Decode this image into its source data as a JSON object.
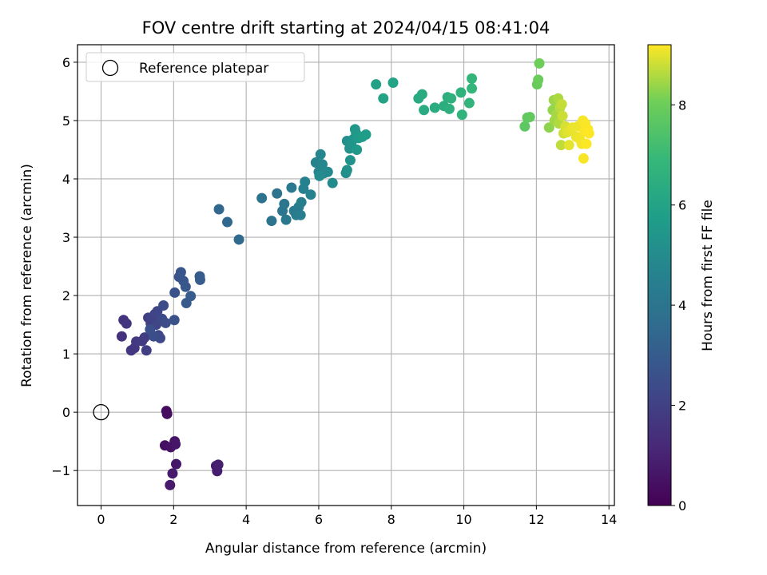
{
  "chart_data": {
    "type": "scatter",
    "title": "FOV centre drift starting at 2024/04/15 08:41:04",
    "xlabel": "Angular distance from reference (arcmin)",
    "ylabel": "Rotation from reference (arcmin)",
    "xlim": [
      -0.65,
      14.15
    ],
    "ylim": [
      -1.6,
      6.3
    ],
    "xticks": [
      0,
      2,
      4,
      6,
      8,
      10,
      12,
      14
    ],
    "yticks": [
      -1,
      0,
      1,
      2,
      3,
      4,
      5,
      6
    ],
    "grid": true,
    "colormap": "viridis",
    "colorbar": {
      "label": "Hours from first FF file",
      "range": [
        0,
        9.2
      ],
      "ticks": [
        0,
        2,
        4,
        6,
        8
      ]
    },
    "legend": {
      "placement": "top-left",
      "entries": [
        "Reference platepar"
      ]
    },
    "reference_point": {
      "x": 0,
      "y": 0
    },
    "points": [
      {
        "x": 1.8,
        "y": 0.02,
        "h": 0.3
      },
      {
        "x": 1.82,
        "y": -0.03,
        "h": 0.35
      },
      {
        "x": 1.76,
        "y": -0.57,
        "h": 0.45
      },
      {
        "x": 1.92,
        "y": -0.6,
        "h": 0.5
      },
      {
        "x": 2.03,
        "y": -0.5,
        "h": 0.55
      },
      {
        "x": 2.05,
        "y": -0.55,
        "h": 0.6
      },
      {
        "x": 2.07,
        "y": -0.89,
        "h": 0.65
      },
      {
        "x": 1.97,
        "y": -1.05,
        "h": 0.7
      },
      {
        "x": 1.9,
        "y": -1.25,
        "h": 0.75
      },
      {
        "x": 3.17,
        "y": -0.92,
        "h": 0.8
      },
      {
        "x": 3.2,
        "y": -1.01,
        "h": 0.85
      },
      {
        "x": 3.23,
        "y": -0.9,
        "h": 0.9
      },
      {
        "x": 0.57,
        "y": 1.3,
        "h": 1.5
      },
      {
        "x": 0.62,
        "y": 1.58,
        "h": 1.55
      },
      {
        "x": 0.7,
        "y": 1.52,
        "h": 1.6
      },
      {
        "x": 0.83,
        "y": 1.06,
        "h": 1.65
      },
      {
        "x": 0.92,
        "y": 1.1,
        "h": 1.7
      },
      {
        "x": 0.97,
        "y": 1.21,
        "h": 1.75
      },
      {
        "x": 1.13,
        "y": 1.22,
        "h": 1.8
      },
      {
        "x": 1.2,
        "y": 1.28,
        "h": 1.85
      },
      {
        "x": 1.25,
        "y": 1.06,
        "h": 1.9
      },
      {
        "x": 1.3,
        "y": 1.62,
        "h": 1.95
      },
      {
        "x": 1.37,
        "y": 1.52,
        "h": 2.0
      },
      {
        "x": 1.42,
        "y": 1.62,
        "h": 2.05
      },
      {
        "x": 1.48,
        "y": 1.68,
        "h": 2.1
      },
      {
        "x": 1.52,
        "y": 1.5,
        "h": 2.15
      },
      {
        "x": 1.55,
        "y": 1.73,
        "h": 2.2
      },
      {
        "x": 1.58,
        "y": 1.32,
        "h": 2.25
      },
      {
        "x": 1.63,
        "y": 1.27,
        "h": 2.3
      },
      {
        "x": 1.68,
        "y": 1.6,
        "h": 2.35
      },
      {
        "x": 1.72,
        "y": 1.83,
        "h": 2.4
      },
      {
        "x": 1.78,
        "y": 1.53,
        "h": 2.45
      },
      {
        "x": 1.45,
        "y": 1.3,
        "h": 2.5
      },
      {
        "x": 1.35,
        "y": 1.42,
        "h": 2.55
      },
      {
        "x": 2.02,
        "y": 1.58,
        "h": 2.6
      },
      {
        "x": 2.03,
        "y": 2.05,
        "h": 2.65
      },
      {
        "x": 2.15,
        "y": 2.32,
        "h": 2.7
      },
      {
        "x": 2.2,
        "y": 2.4,
        "h": 2.75
      },
      {
        "x": 2.27,
        "y": 2.25,
        "h": 2.8
      },
      {
        "x": 2.33,
        "y": 2.15,
        "h": 2.85
      },
      {
        "x": 2.35,
        "y": 1.87,
        "h": 2.9
      },
      {
        "x": 2.47,
        "y": 1.99,
        "h": 2.95
      },
      {
        "x": 2.72,
        "y": 2.33,
        "h": 3.0
      },
      {
        "x": 2.73,
        "y": 2.27,
        "h": 3.05
      },
      {
        "x": 3.25,
        "y": 3.48,
        "h": 3.4
      },
      {
        "x": 3.48,
        "y": 3.26,
        "h": 3.5
      },
      {
        "x": 3.8,
        "y": 2.96,
        "h": 3.6
      },
      {
        "x": 4.43,
        "y": 3.67,
        "h": 3.9
      },
      {
        "x": 4.7,
        "y": 3.28,
        "h": 3.95
      },
      {
        "x": 4.85,
        "y": 3.75,
        "h": 4.0
      },
      {
        "x": 5.0,
        "y": 3.45,
        "h": 4.05
      },
      {
        "x": 5.05,
        "y": 3.57,
        "h": 4.1
      },
      {
        "x": 5.1,
        "y": 3.3,
        "h": 4.15
      },
      {
        "x": 5.25,
        "y": 3.85,
        "h": 4.2
      },
      {
        "x": 5.32,
        "y": 3.45,
        "h": 4.25
      },
      {
        "x": 5.38,
        "y": 3.38,
        "h": 4.3
      },
      {
        "x": 5.45,
        "y": 3.52,
        "h": 4.35
      },
      {
        "x": 5.5,
        "y": 3.38,
        "h": 4.4
      },
      {
        "x": 5.52,
        "y": 3.6,
        "h": 4.45
      },
      {
        "x": 5.58,
        "y": 3.83,
        "h": 4.5
      },
      {
        "x": 5.62,
        "y": 3.95,
        "h": 4.55
      },
      {
        "x": 5.78,
        "y": 3.73,
        "h": 4.6
      },
      {
        "x": 5.92,
        "y": 4.28,
        "h": 4.65
      },
      {
        "x": 6.0,
        "y": 4.12,
        "h": 4.7
      },
      {
        "x": 6.05,
        "y": 4.42,
        "h": 4.75
      },
      {
        "x": 6.1,
        "y": 4.25,
        "h": 4.8
      },
      {
        "x": 6.15,
        "y": 4.1,
        "h": 4.85
      },
      {
        "x": 6.25,
        "y": 4.12,
        "h": 4.9
      },
      {
        "x": 6.38,
        "y": 3.93,
        "h": 4.95
      },
      {
        "x": 6.02,
        "y": 4.05,
        "h": 5.0
      },
      {
        "x": 6.75,
        "y": 4.1,
        "h": 5.1
      },
      {
        "x": 6.78,
        "y": 4.65,
        "h": 5.15
      },
      {
        "x": 6.78,
        "y": 4.15,
        "h": 5.2
      },
      {
        "x": 6.85,
        "y": 4.52,
        "h": 5.25
      },
      {
        "x": 6.87,
        "y": 4.32,
        "h": 5.3
      },
      {
        "x": 6.9,
        "y": 4.6,
        "h": 5.35
      },
      {
        "x": 6.95,
        "y": 4.68,
        "h": 5.4
      },
      {
        "x": 7.0,
        "y": 4.85,
        "h": 5.45
      },
      {
        "x": 7.03,
        "y": 4.78,
        "h": 5.5
      },
      {
        "x": 7.05,
        "y": 4.5,
        "h": 5.55
      },
      {
        "x": 7.1,
        "y": 4.7,
        "h": 5.6
      },
      {
        "x": 7.2,
        "y": 4.72,
        "h": 5.65
      },
      {
        "x": 7.3,
        "y": 4.76,
        "h": 5.7
      },
      {
        "x": 7.58,
        "y": 5.62,
        "h": 5.9
      },
      {
        "x": 7.78,
        "y": 5.38,
        "h": 5.95
      },
      {
        "x": 8.05,
        "y": 5.65,
        "h": 6.0
      },
      {
        "x": 8.75,
        "y": 5.38,
        "h": 6.25
      },
      {
        "x": 8.85,
        "y": 5.45,
        "h": 6.3
      },
      {
        "x": 8.9,
        "y": 5.18,
        "h": 6.35
      },
      {
        "x": 9.2,
        "y": 5.22,
        "h": 6.4
      },
      {
        "x": 9.45,
        "y": 5.25,
        "h": 6.45
      },
      {
        "x": 9.55,
        "y": 5.4,
        "h": 6.5
      },
      {
        "x": 9.6,
        "y": 5.2,
        "h": 6.55
      },
      {
        "x": 9.65,
        "y": 5.38,
        "h": 6.6
      },
      {
        "x": 9.92,
        "y": 5.48,
        "h": 6.65
      },
      {
        "x": 9.95,
        "y": 5.1,
        "h": 6.7
      },
      {
        "x": 10.15,
        "y": 5.3,
        "h": 6.75
      },
      {
        "x": 10.22,
        "y": 5.72,
        "h": 6.8
      },
      {
        "x": 10.22,
        "y": 5.55,
        "h": 6.85
      },
      {
        "x": 11.68,
        "y": 4.9,
        "h": 7.7
      },
      {
        "x": 11.75,
        "y": 5.05,
        "h": 7.75
      },
      {
        "x": 11.82,
        "y": 5.06,
        "h": 7.8
      },
      {
        "x": 12.02,
        "y": 5.62,
        "h": 7.9
      },
      {
        "x": 12.05,
        "y": 5.7,
        "h": 7.95
      },
      {
        "x": 12.08,
        "y": 5.98,
        "h": 8.0
      },
      {
        "x": 12.35,
        "y": 4.88,
        "h": 8.3
      },
      {
        "x": 12.45,
        "y": 5.18,
        "h": 8.35
      },
      {
        "x": 12.48,
        "y": 5.35,
        "h": 8.4
      },
      {
        "x": 12.5,
        "y": 5.0,
        "h": 8.45
      },
      {
        "x": 12.55,
        "y": 5.1,
        "h": 8.5
      },
      {
        "x": 12.6,
        "y": 5.38,
        "h": 8.55
      },
      {
        "x": 12.62,
        "y": 4.95,
        "h": 8.6
      },
      {
        "x": 12.65,
        "y": 5.22,
        "h": 8.65
      },
      {
        "x": 12.68,
        "y": 4.58,
        "h": 8.7
      },
      {
        "x": 12.7,
        "y": 5.28,
        "h": 8.75
      },
      {
        "x": 12.72,
        "y": 5.08,
        "h": 8.8
      },
      {
        "x": 12.75,
        "y": 4.78,
        "h": 8.85
      },
      {
        "x": 12.8,
        "y": 4.9,
        "h": 8.9
      },
      {
        "x": 12.85,
        "y": 4.8,
        "h": 8.95
      },
      {
        "x": 12.9,
        "y": 4.58,
        "h": 9.0
      },
      {
        "x": 12.95,
        "y": 4.85,
        "h": 9.02
      },
      {
        "x": 13.0,
        "y": 4.88,
        "h": 9.04
      },
      {
        "x": 13.1,
        "y": 4.72,
        "h": 9.06
      },
      {
        "x": 13.15,
        "y": 4.9,
        "h": 9.08
      },
      {
        "x": 13.2,
        "y": 4.68,
        "h": 9.1
      },
      {
        "x": 13.25,
        "y": 4.6,
        "h": 9.12
      },
      {
        "x": 13.28,
        "y": 5.0,
        "h": 9.14
      },
      {
        "x": 13.3,
        "y": 4.35,
        "h": 9.15
      },
      {
        "x": 13.32,
        "y": 4.82,
        "h": 9.16
      },
      {
        "x": 13.35,
        "y": 4.95,
        "h": 9.17
      },
      {
        "x": 13.38,
        "y": 4.6,
        "h": 9.18
      },
      {
        "x": 13.42,
        "y": 4.85,
        "h": 9.19
      },
      {
        "x": 13.45,
        "y": 4.78,
        "h": 9.2
      }
    ]
  }
}
